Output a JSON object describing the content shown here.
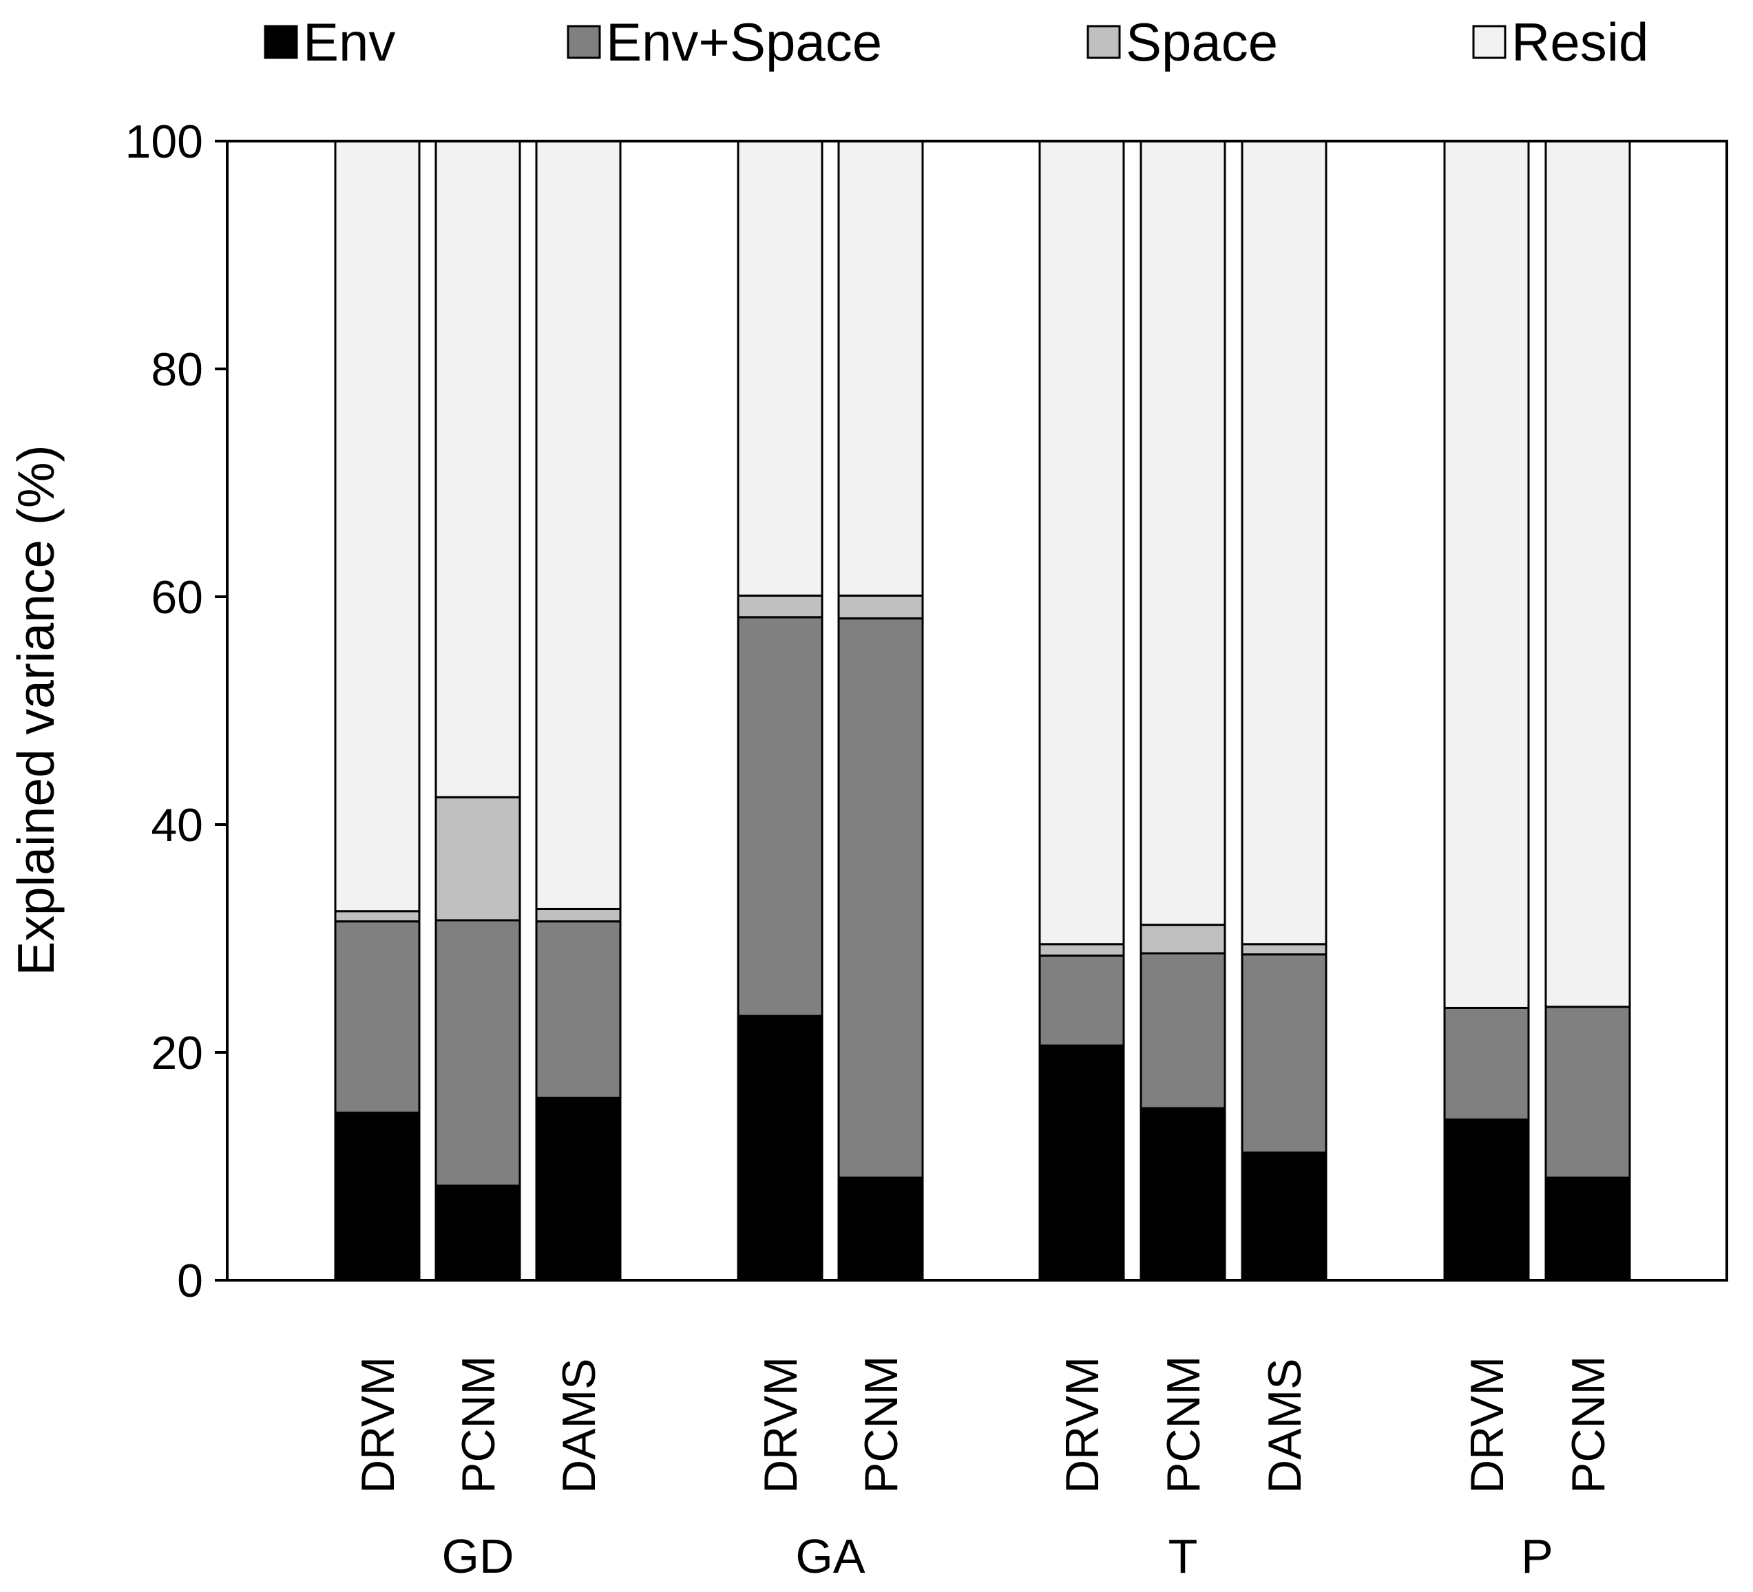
{
  "chart_data": {
    "type": "bar",
    "stacked": true,
    "title": "",
    "xlabel": "",
    "ylabel": "Explained variance (%)",
    "ylim": [
      0,
      100
    ],
    "yticks": [
      "0",
      "20",
      "40",
      "60",
      "80",
      "100"
    ],
    "legend_position": "top",
    "grid": false,
    "groups": [
      {
        "name": "GD",
        "categories": [
          "DRVM",
          "PCNM",
          "DAMS"
        ]
      },
      {
        "name": "GA",
        "categories": [
          "DRVM",
          "PCNM"
        ]
      },
      {
        "name": "T",
        "categories": [
          "DRVM",
          "PCNM",
          "DAMS"
        ]
      },
      {
        "name": "P",
        "categories": [
          "DRVM",
          "PCNM"
        ]
      }
    ],
    "series": [
      {
        "name": "Env",
        "color": "#000000",
        "values": [
          14.7,
          8.3,
          16.0,
          23.2,
          9.0,
          20.6,
          15.1,
          11.2,
          14.1,
          9.0
        ]
      },
      {
        "name": "Env+Space",
        "color": "#808080",
        "values": [
          16.8,
          23.3,
          15.5,
          35.0,
          49.1,
          7.9,
          13.6,
          17.4,
          9.8,
          15.0
        ]
      },
      {
        "name": "Space",
        "color": "#c0c0c0",
        "values": [
          0.9,
          10.8,
          1.1,
          1.9,
          2.0,
          1.0,
          2.5,
          0.9,
          0.0,
          0.0
        ]
      },
      {
        "name": "Resid",
        "color": "#f2f2f2",
        "values": [
          67.6,
          57.6,
          67.4,
          39.9,
          39.9,
          70.5,
          68.8,
          70.5,
          76.1,
          76.0
        ]
      }
    ]
  }
}
